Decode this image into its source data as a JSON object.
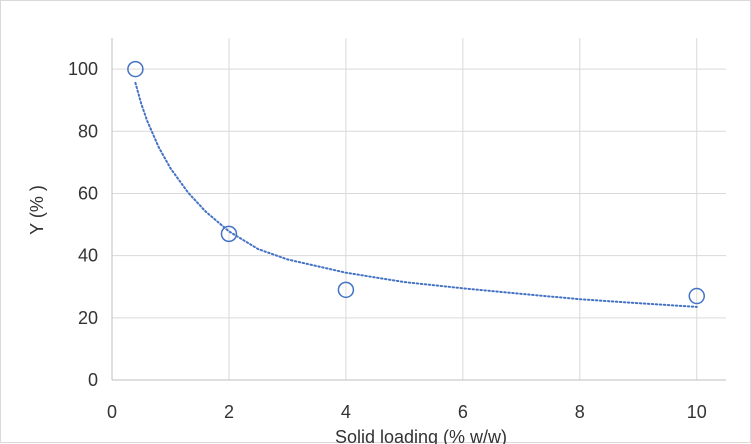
{
  "chart_data": {
    "type": "scatter",
    "title": "",
    "xlabel": "Solid loading (% w/w)",
    "ylabel": "Y (% )",
    "xlim": [
      0,
      10.5
    ],
    "ylim": [
      0,
      110
    ],
    "x_ticks": [
      0,
      2,
      4,
      6,
      8,
      10
    ],
    "y_ticks": [
      0,
      20,
      40,
      60,
      80,
      100
    ],
    "grid": true,
    "legend": "none",
    "series": [
      {
        "marker": "open-circle",
        "color": "#4472C4",
        "x": [
          0.4,
          2,
          4,
          10
        ],
        "y": [
          100,
          47,
          29,
          27
        ]
      }
    ],
    "trendline": {
      "style": "dotted",
      "color": "#4472C4",
      "x_range": [
        0.4,
        10
      ],
      "points": [
        [
          0.4,
          95.6
        ],
        [
          0.5,
          88.9
        ],
        [
          0.6,
          83.4
        ],
        [
          0.8,
          74.8
        ],
        [
          1.0,
          68.1
        ],
        [
          1.3,
          60.3
        ],
        [
          1.6,
          54.2
        ],
        [
          2.0,
          47.8
        ],
        [
          2.5,
          42.1
        ],
        [
          3.0,
          38.8
        ],
        [
          4.0,
          34.5
        ],
        [
          5.0,
          31.5
        ],
        [
          6.0,
          29.5
        ],
        [
          7.0,
          27.7
        ],
        [
          8.0,
          26.0
        ],
        [
          9.0,
          24.7
        ],
        [
          10.0,
          23.5
        ]
      ]
    }
  }
}
